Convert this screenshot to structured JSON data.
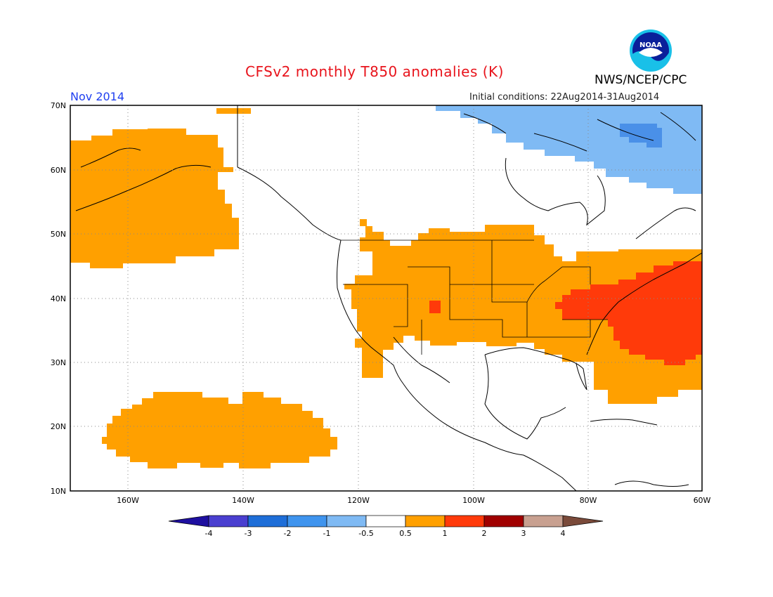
{
  "title": "CFSv2 monthly T850 anomalies (K)",
  "month": "Nov 2014",
  "initial_conditions": "Initial conditions: 22Aug2014-31Aug2014",
  "agency": "NWS/NCEP/CPC",
  "logo_text": "NOAA",
  "map": {
    "lon_range": [
      -172,
      -60
    ],
    "lat_range": [
      10,
      70
    ],
    "lon_ticks": [
      "160W",
      "140W",
      "120W",
      "100W",
      "80W",
      "60W"
    ],
    "lat_ticks": [
      "70N",
      "60N",
      "50N",
      "40N",
      "30N",
      "20N",
      "10N"
    ],
    "anomaly_regions": [
      {
        "name": "Gulf of Alaska / Bering",
        "category": "0.5 to 1"
      },
      {
        "name": "Hawaii region",
        "category": "0.5 to 1"
      },
      {
        "name": "Contiguous United States",
        "category": "0.5 to 1"
      },
      {
        "name": "Colorado spot",
        "category": "1 to 2"
      },
      {
        "name": "US East Coast / western Atlantic",
        "category": "1 to 2"
      },
      {
        "name": "Hudson Bay / Baffin",
        "category": "-1 to -0.5"
      }
    ]
  },
  "colorbar": {
    "labels": [
      "-4",
      "-3",
      "-2",
      "-1",
      "-0.5",
      "0.5",
      "1",
      "2",
      "3",
      "4"
    ],
    "colors": [
      "#1e0fa0",
      "#4a3fd0",
      "#1e6ed8",
      "#3f94ee",
      "#7fbaf4",
      "#ffffff",
      "#ffa000",
      "#ff3a0a",
      "#a00000",
      "#c8a090",
      "#7a4a3a"
    ]
  }
}
